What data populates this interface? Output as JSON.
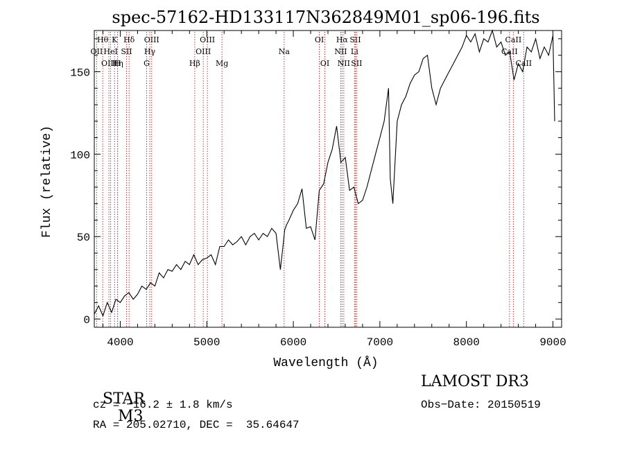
{
  "chart_data": {
    "type": "line",
    "title": "spec-57162-HD133117N362849M01_sp06-196.fits",
    "xlabel": "Wavelength (Å)",
    "ylabel": "Flux (relative)",
    "xlim": [
      3700,
      9100
    ],
    "ylim": [
      -5,
      175
    ],
    "xticks": [
      4000,
      5000,
      6000,
      7000,
      8000,
      9000
    ],
    "yticks": [
      0,
      50,
      100,
      150
    ],
    "grid": false,
    "series": [
      {
        "name": "flux",
        "x": [
          3700,
          3750,
          3800,
          3850,
          3900,
          3950,
          4000,
          4050,
          4100,
          4150,
          4200,
          4250,
          4300,
          4350,
          4400,
          4450,
          4500,
          4550,
          4600,
          4650,
          4700,
          4750,
          4800,
          4850,
          4900,
          4950,
          5000,
          5050,
          5100,
          5150,
          5200,
          5250,
          5300,
          5350,
          5400,
          5450,
          5500,
          5550,
          5600,
          5650,
          5700,
          5750,
          5800,
          5850,
          5880,
          5900,
          5920,
          5950,
          6000,
          6050,
          6100,
          6150,
          6200,
          6250,
          6300,
          6350,
          6400,
          6450,
          6500,
          6550,
          6600,
          6650,
          6700,
          6750,
          6800,
          6850,
          6900,
          6950,
          7000,
          7050,
          7100,
          7120,
          7150,
          7200,
          7250,
          7300,
          7350,
          7400,
          7450,
          7500,
          7550,
          7600,
          7650,
          7700,
          7750,
          7800,
          7850,
          7900,
          7950,
          8000,
          8050,
          8100,
          8150,
          8200,
          8250,
          8300,
          8350,
          8400,
          8450,
          8500,
          8550,
          8600,
          8650,
          8700,
          8750,
          8800,
          8850,
          8900,
          8950,
          9000,
          9020
        ],
        "values": [
          3,
          8,
          2,
          10,
          4,
          12,
          10,
          14,
          16,
          12,
          15,
          20,
          18,
          22,
          20,
          28,
          25,
          30,
          29,
          33,
          30,
          35,
          33,
          39,
          33,
          36,
          37,
          39,
          33,
          44,
          44,
          48,
          45,
          47,
          50,
          45,
          50,
          52,
          48,
          52,
          50,
          55,
          52,
          30,
          44,
          54,
          57,
          60,
          66,
          70,
          79,
          55,
          56,
          48,
          78,
          82,
          95,
          103,
          117,
          95,
          98,
          78,
          80,
          70,
          72,
          80,
          90,
          100,
          110,
          120,
          140,
          85,
          70,
          120,
          130,
          135,
          143,
          148,
          150,
          158,
          160,
          140,
          130,
          140,
          145,
          150,
          155,
          160,
          165,
          172,
          168,
          173,
          162,
          170,
          168,
          175,
          165,
          168,
          160,
          162,
          145,
          155,
          150,
          165,
          162,
          170,
          158,
          165,
          160,
          172,
          120
        ]
      }
    ],
    "lines": [
      {
        "label": "OII",
        "x": 3727,
        "row": 1
      },
      {
        "label": "Hθ",
        "x": 3797,
        "row": 0
      },
      {
        "label": "OIII",
        "x": 3869,
        "row": 2
      },
      {
        "label": "HeI",
        "x": 3889,
        "row": 1
      },
      {
        "label": "K",
        "x": 3934,
        "row": 0
      },
      {
        "label": "Hη",
        "x": 3970,
        "row": 2
      },
      {
        "label": "SII",
        "x": 4072,
        "row": 1
      },
      {
        "label": "H",
        "x": 3969,
        "row": 2
      },
      {
        "label": "Hδ",
        "x": 4102,
        "row": 0
      },
      {
        "label": "Hγ",
        "x": 4341,
        "row": 1
      },
      {
        "label": "G",
        "x": 4305,
        "row": 2
      },
      {
        "label": "OIII",
        "x": 4363,
        "row": 0
      },
      {
        "label": "Hβ",
        "x": 4861,
        "row": 2
      },
      {
        "label": "OIII",
        "x": 4959,
        "row": 1
      },
      {
        "label": "OIII",
        "x": 5007,
        "row": 0
      },
      {
        "label": "Mg",
        "x": 5175,
        "row": 2
      },
      {
        "label": "Na",
        "x": 5894,
        "row": 1
      },
      {
        "label": "OI",
        "x": 6300,
        "row": 0
      },
      {
        "label": "OI",
        "x": 6364,
        "row": 2
      },
      {
        "label": "NII",
        "x": 6548,
        "row": 1
      },
      {
        "label": "Hα",
        "x": 6563,
        "row": 0
      },
      {
        "label": "NII",
        "x": 6583,
        "row": 2
      },
      {
        "label": "Li",
        "x": 6707,
        "row": 1
      },
      {
        "label": "SII",
        "x": 6716,
        "row": 0
      },
      {
        "label": "SII",
        "x": 6731,
        "row": 2
      },
      {
        "label": "CaII",
        "x": 8498,
        "row": 1
      },
      {
        "label": "CaII",
        "x": 8542,
        "row": 0
      },
      {
        "label": "CaII",
        "x": 8662,
        "row": 2
      }
    ]
  },
  "info": {
    "class": "STAR",
    "subclass": "M3",
    "survey": "LAMOST DR3",
    "cz": "cz = −16.2 ± 1.8 km/s",
    "obs_date": "Obs−Date: 20150519",
    "radec": "RA = 205.02710, DEC =  35.64647"
  }
}
